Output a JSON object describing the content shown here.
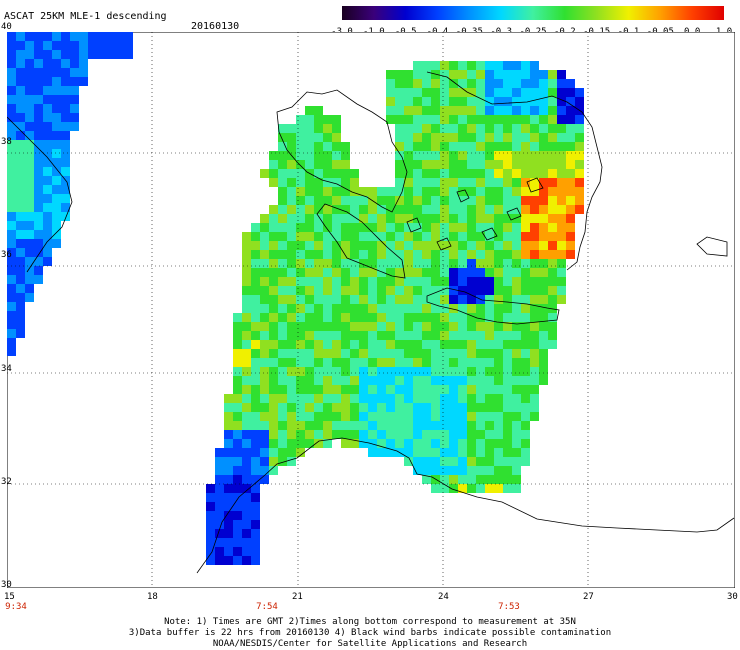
{
  "header": {
    "title": "ASCAT 25KM MLE-1 descending",
    "date": "20160130"
  },
  "colorbar": {
    "labels": [
      "-3.0",
      "-1.0",
      "-0.5",
      "-0.4",
      "-0.35",
      "-0.3",
      "-0.25",
      "-0.2",
      "-0.15",
      "-0.1",
      "-0.05",
      "0.0",
      "1.0"
    ],
    "colors": [
      "#1a0020",
      "#3a007a",
      "#0000d0",
      "#0040ff",
      "#0090ff",
      "#00d8ff",
      "#40f0a0",
      "#30e030",
      "#90e020",
      "#f0f000",
      "#ffa000",
      "#ff4000",
      "#e00000"
    ]
  },
  "axes": {
    "x_labels": [
      "15",
      "18",
      "21",
      "24",
      "27",
      "30"
    ],
    "y_labels": [
      "40",
      "38",
      "36",
      "34",
      "32",
      "30"
    ],
    "times": [
      "9:34",
      "7:54",
      "7:53"
    ]
  },
  "notes": {
    "line1": "Note: 1) Times are GMT 2)Times along bottom correspond to measurement at 35N",
    "line2": "3)Data buffer is 22 hrs from 20160130 4) Black wind barbs indicate possible contamination",
    "line3": "NOAA/NESDIS/Center for Satellite Applications and Research"
  }
}
